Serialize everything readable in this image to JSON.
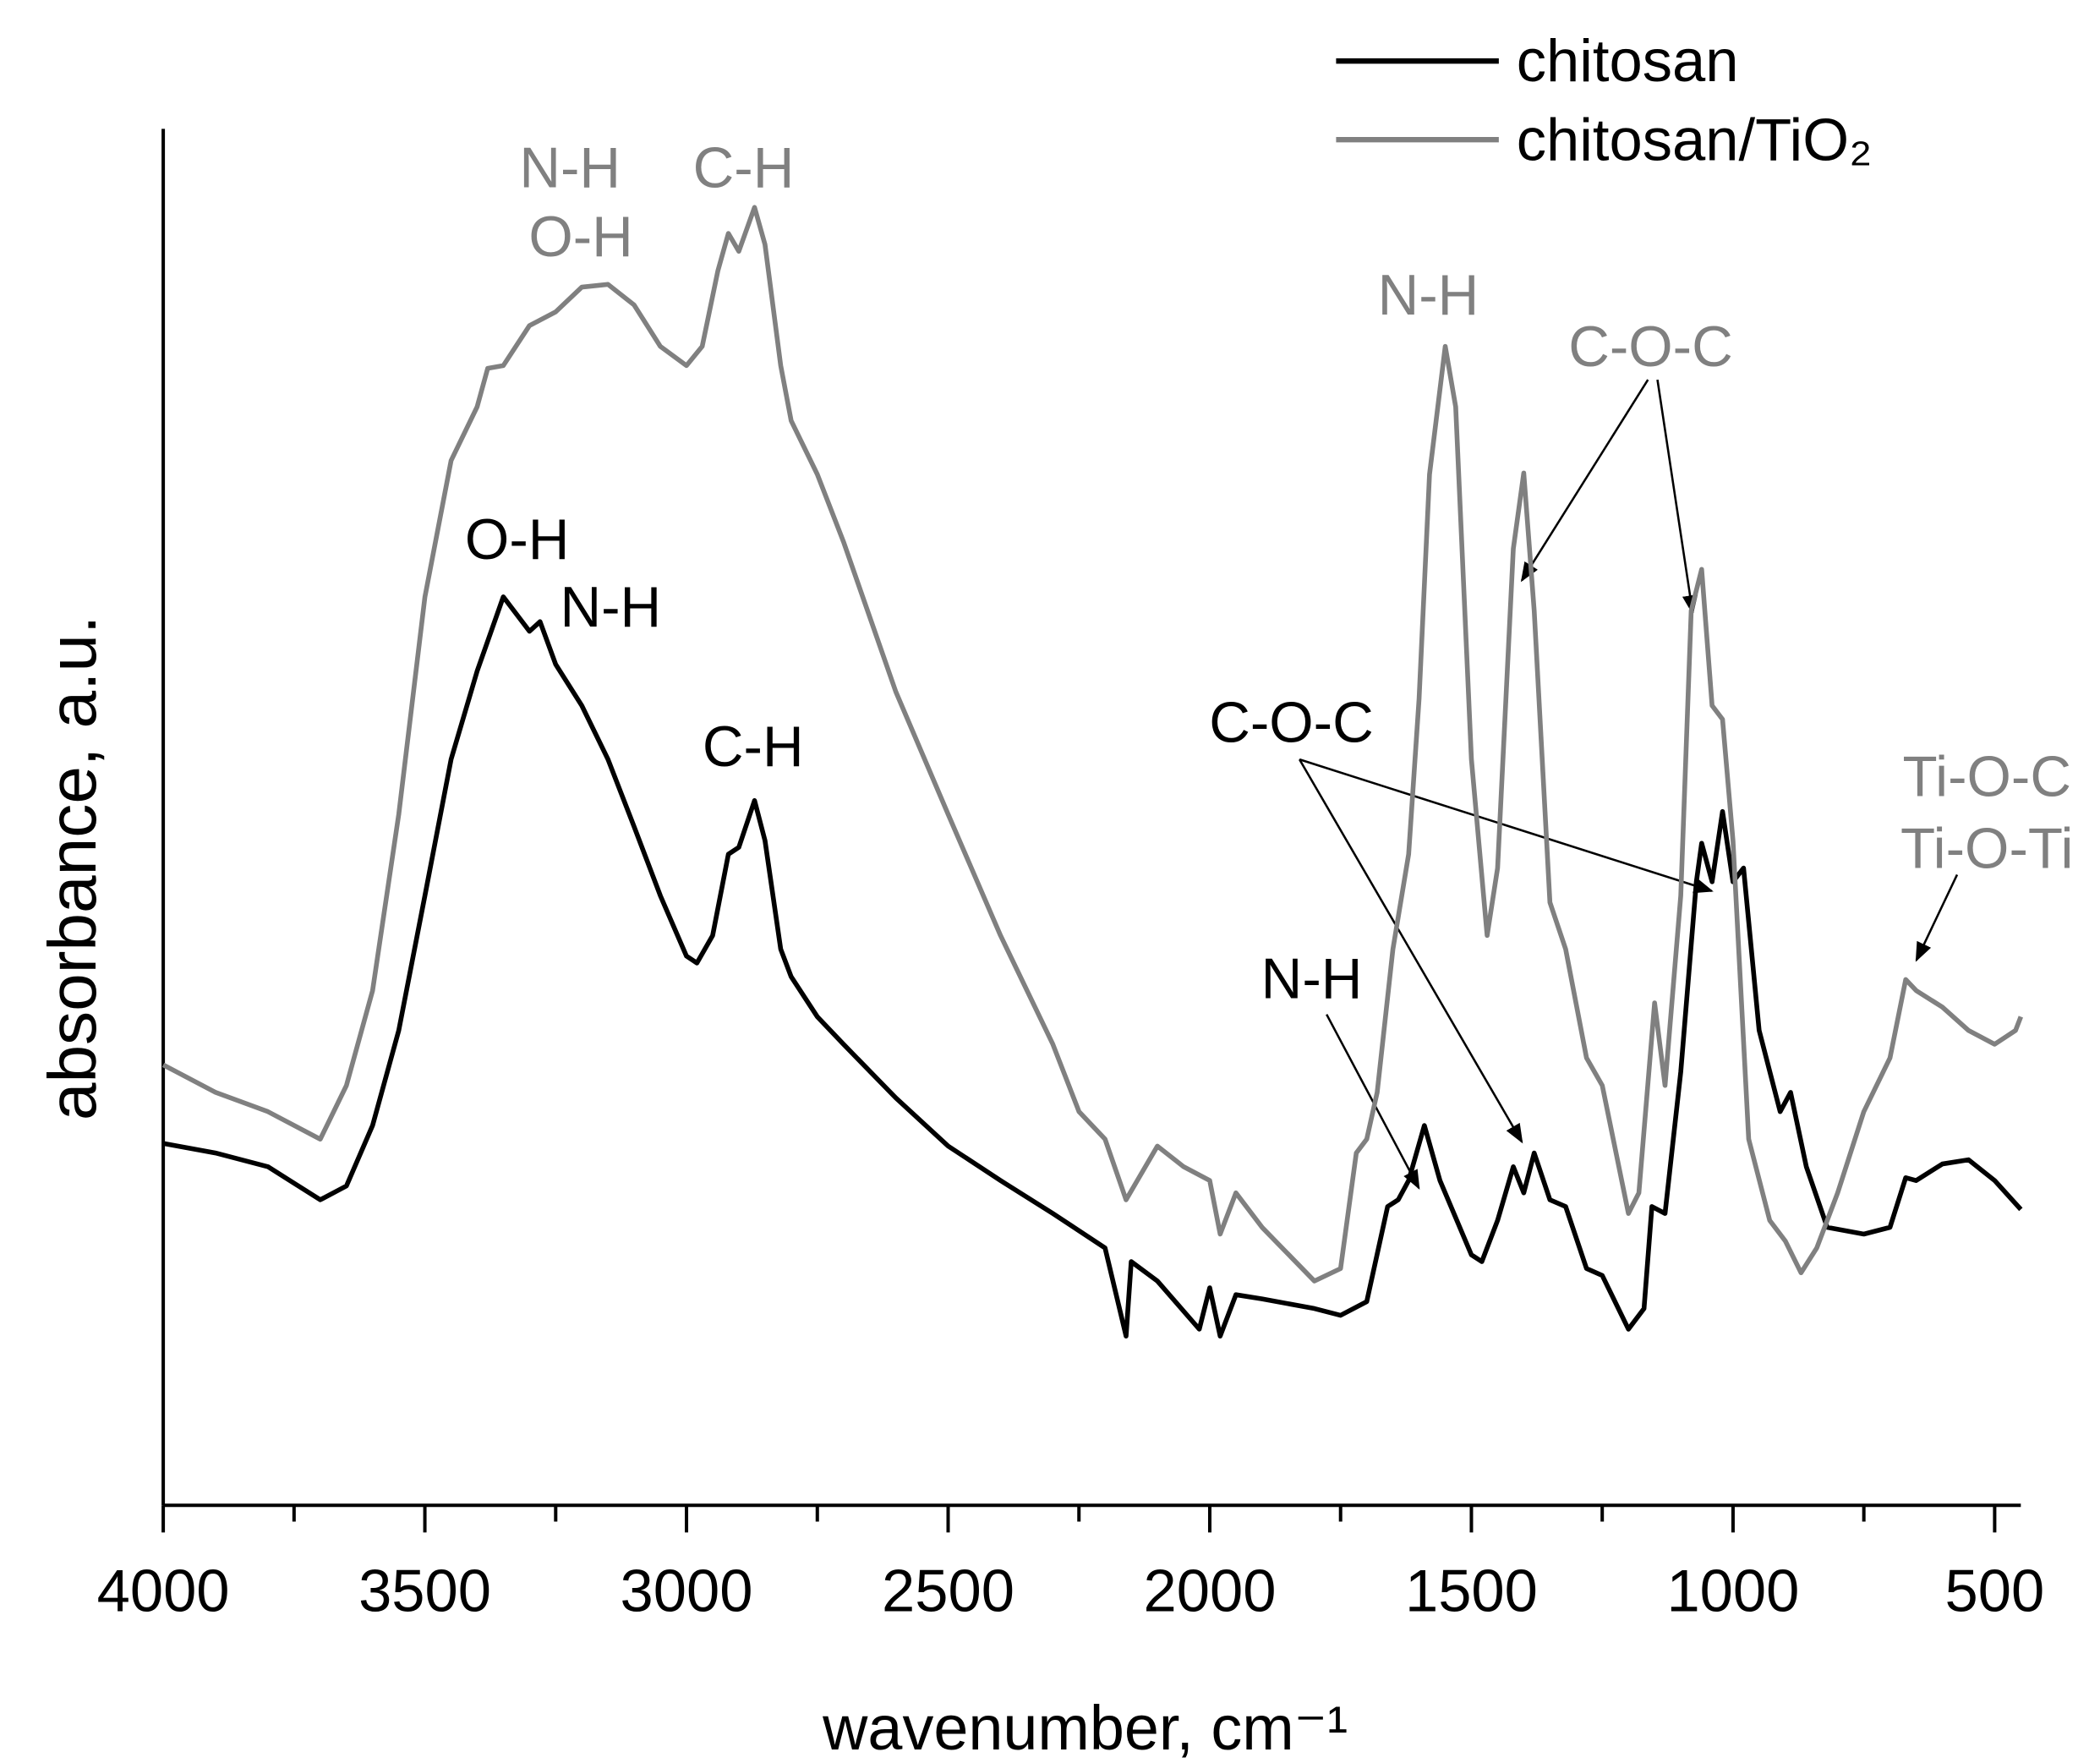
{
  "chart_data": {
    "type": "line",
    "x_label": "wavenumber, cm⁻¹",
    "y_label": "absorbance, a.u.",
    "xlim": [
      4000,
      450
    ],
    "ylim": [
      0,
      100
    ],
    "xticks": [
      4000,
      3500,
      3000,
      2500,
      2000,
      1500,
      1000,
      500
    ],
    "xminorticks": [
      3750,
      3250,
      2750,
      2250,
      1750,
      1250,
      750
    ],
    "legend": "top-right",
    "series": [
      {
        "name": "chitosan",
        "color": "#000000",
        "x": [
          4000,
          3900,
          3800,
          3700,
          3650,
          3600,
          3550,
          3500,
          3450,
          3400,
          3350,
          3300,
          3280,
          3250,
          3200,
          3150,
          3100,
          3050,
          3000,
          2980,
          2950,
          2920,
          2900,
          2870,
          2850,
          2820,
          2800,
          2750,
          2700,
          2600,
          2500,
          2400,
          2300,
          2200,
          2160,
          2150,
          2100,
          2020,
          2000,
          1980,
          1950,
          1900,
          1800,
          1750,
          1700,
          1660,
          1640,
          1620,
          1590,
          1560,
          1500,
          1480,
          1450,
          1420,
          1400,
          1380,
          1350,
          1320,
          1280,
          1250,
          1200,
          1170,
          1155,
          1130,
          1100,
          1070,
          1060,
          1040,
          1020,
          1000,
          980,
          950,
          910,
          890,
          860,
          820,
          750,
          700,
          670,
          650,
          600,
          550,
          500,
          450
        ],
        "values": [
          26.3,
          25.6,
          24.6,
          22.2,
          23.2,
          27.6,
          34.5,
          44.3,
          54.2,
          60.6,
          66.0,
          63.5,
          64.2,
          61.1,
          58.1,
          54.2,
          49.3,
          44.3,
          39.9,
          39.4,
          41.4,
          47.3,
          47.8,
          51.2,
          48.3,
          40.4,
          38.4,
          35.5,
          33.5,
          29.6,
          26.1,
          23.6,
          21.2,
          18.7,
          12.3,
          17.7,
          16.3,
          12.8,
          15.8,
          12.3,
          15.3,
          15.0,
          14.3,
          13.8,
          14.8,
          21.7,
          22.2,
          23.6,
          27.6,
          23.6,
          18.2,
          17.7,
          20.7,
          24.6,
          22.7,
          25.6,
          22.2,
          21.7,
          17.2,
          16.7,
          12.8,
          14.3,
          21.7,
          21.2,
          31.5,
          45.3,
          48.1,
          45.3,
          50.4,
          45.3,
          46.3,
          34.5,
          28.6,
          30.0,
          24.6,
          20.2,
          19.7,
          20.2,
          23.8,
          23.6,
          24.8,
          25.1,
          23.6,
          21.5
        ]
      },
      {
        "name": "chitosan/TiO₂",
        "color": "#808080",
        "x": [
          4000,
          3900,
          3800,
          3700,
          3650,
          3600,
          3550,
          3500,
          3450,
          3400,
          3380,
          3350,
          3300,
          3250,
          3200,
          3150,
          3100,
          3050,
          3000,
          2970,
          2940,
          2920,
          2900,
          2870,
          2850,
          2820,
          2800,
          2750,
          2700,
          2600,
          2500,
          2400,
          2300,
          2250,
          2200,
          2160,
          2100,
          2050,
          2000,
          1980,
          1950,
          1900,
          1800,
          1750,
          1720,
          1700,
          1680,
          1650,
          1620,
          1600,
          1580,
          1550,
          1530,
          1500,
          1470,
          1450,
          1420,
          1400,
          1380,
          1350,
          1320,
          1280,
          1250,
          1200,
          1180,
          1150,
          1130,
          1100,
          1080,
          1060,
          1040,
          1020,
          1000,
          970,
          930,
          900,
          870,
          840,
          800,
          750,
          700,
          670,
          650,
          600,
          550,
          500,
          460,
          450
        ],
        "values": [
          32.0,
          30.0,
          28.6,
          26.6,
          30.5,
          37.4,
          50.2,
          66.0,
          75.9,
          79.8,
          82.6,
          82.8,
          85.7,
          86.7,
          88.5,
          88.7,
          87.2,
          84.2,
          82.8,
          84.2,
          89.7,
          92.4,
          91.1,
          94.3,
          91.6,
          82.8,
          78.8,
          74.9,
          70.0,
          59.1,
          50.2,
          41.4,
          33.5,
          28.6,
          26.6,
          22.2,
          26.1,
          24.6,
          23.6,
          19.7,
          22.7,
          20.2,
          16.3,
          17.2,
          25.6,
          26.6,
          30.0,
          40.4,
          47.3,
          58.6,
          74.9,
          84.2,
          79.8,
          54.2,
          41.4,
          46.3,
          69.5,
          75.0,
          65.0,
          43.8,
          40.4,
          32.5,
          30.5,
          21.2,
          22.7,
          36.5,
          30.5,
          44.3,
          65.0,
          68.0,
          58.1,
          57.1,
          48.3,
          26.6,
          20.7,
          19.2,
          16.9,
          18.7,
          22.7,
          28.6,
          32.5,
          38.2,
          37.4,
          36.2,
          34.5,
          33.5,
          34.5,
          35.5
        ]
      }
    ],
    "annotations": [
      {
        "text": "N-H",
        "color": "#808080"
      },
      {
        "text": "O-H",
        "color": "#808080"
      },
      {
        "text": "C-H",
        "color": "#808080"
      },
      {
        "text": "N-H",
        "color": "#808080"
      },
      {
        "text": "C-O-C",
        "color": "#808080"
      },
      {
        "text": "Ti-O-C",
        "color": "#808080"
      },
      {
        "text": "Ti-O-Ti",
        "color": "#808080"
      },
      {
        "text": "O-H",
        "color": "#000000"
      },
      {
        "text": "N-H",
        "color": "#000000"
      },
      {
        "text": "C-H",
        "color": "#000000"
      },
      {
        "text": "C-O-C",
        "color": "#000000"
      },
      {
        "text": "N-H",
        "color": "#000000"
      }
    ]
  }
}
